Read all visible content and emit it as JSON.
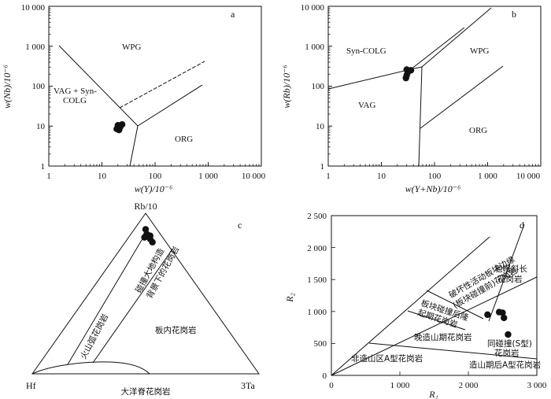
{
  "panels": {
    "a": {
      "letter": "a",
      "ylabel": "w(Nb)/10⁻⁶",
      "xlabel": "w(Y)/10⁻⁶",
      "xticks": [
        "1",
        "10",
        "100",
        "1 000",
        "10 000"
      ],
      "yticks": [
        "1",
        "10",
        "100",
        "1 000",
        "10 000"
      ],
      "fields": [
        "WPG",
        "VAG + Syn-",
        "COLG",
        "ORG"
      ]
    },
    "b": {
      "letter": "b",
      "ylabel": "w(Rb)/10⁻⁶",
      "xlabel": "w(Y+Nb)/10⁻⁶",
      "xticks": [
        "1",
        "10",
        "100",
        "1 000",
        "10 000"
      ],
      "yticks": [
        "1",
        "10",
        "100",
        "1 000",
        "10 000"
      ],
      "fields": [
        "Syn-COLG",
        "WPG",
        "VAG",
        "ORG"
      ]
    },
    "c": {
      "letter": "c",
      "apex_top": "Rb/10",
      "apex_left": "Hf",
      "apex_right": "3Ta",
      "fields": [
        "碰撞大地构造",
        "背景下的花岗岩",
        "火山弧花岗岩",
        "板内花岗岩",
        "大洋脊花岗岩"
      ]
    },
    "d": {
      "letter": "d",
      "ylabel": "R₂",
      "xlabel": "R₁",
      "xticks": [
        "0",
        "1 000",
        "2 000",
        "3 000"
      ],
      "yticks": [
        "0",
        "500",
        "1 000",
        "1 500",
        "2 000",
        "2 500"
      ],
      "fields": [
        "地幔斜长",
        "花岗岩",
        "破坏性活动板块边缘",
        "(板块碰撞前)花岗岩",
        "板块碰撞后隆",
        "起期花岗岩",
        "晚造山期花岗岩",
        "同碰撞(S型)",
        "花岗岩",
        "非造山区A型花岗岩",
        "造山期后A型花岗岩"
      ]
    }
  },
  "chart_data": [
    {
      "type": "scatter",
      "panel": "a",
      "xlabel": "w(Y)/10⁻⁶",
      "ylabel": "w(Nb)/10⁻⁶",
      "xscale": "log",
      "yscale": "log",
      "xlim": [
        1,
        10000
      ],
      "ylim": [
        1,
        10000
      ],
      "points": [
        [
          20,
          10.5
        ],
        [
          22,
          9.5
        ],
        [
          24,
          11
        ],
        [
          19,
          8.5
        ],
        [
          21,
          8
        ]
      ]
    },
    {
      "type": "scatter",
      "panel": "b",
      "xlabel": "w(Y+Nb)/10⁻⁶",
      "ylabel": "w(Rb)/10⁻⁶",
      "xscale": "log",
      "yscale": "log",
      "xlim": [
        1,
        10000
      ],
      "ylim": [
        1,
        10000
      ],
      "points": [
        [
          30,
          260
        ],
        [
          32,
          230
        ],
        [
          36,
          250
        ],
        [
          30,
          190
        ],
        [
          29,
          160
        ]
      ]
    },
    {
      "type": "scatter",
      "panel": "c",
      "components": [
        "Rb/10",
        "Hf",
        "3Ta"
      ],
      "points": [
        [
          0.9,
          0.05,
          0.05
        ],
        [
          0.87,
          0.06,
          0.07
        ],
        [
          0.86,
          0.05,
          0.09
        ],
        [
          0.84,
          0.06,
          0.1
        ],
        [
          0.82,
          0.06,
          0.12
        ],
        [
          0.85,
          0.08,
          0.07
        ]
      ]
    },
    {
      "type": "scatter",
      "panel": "d",
      "xlabel": "R₁",
      "ylabel": "R₂",
      "xlim": [
        0,
        3000
      ],
      "ylim": [
        0,
        2500
      ],
      "points": [
        [
          2280,
          950
        ],
        [
          2450,
          990
        ],
        [
          2500,
          980
        ],
        [
          2520,
          900
        ],
        [
          2580,
          640
        ]
      ]
    }
  ]
}
